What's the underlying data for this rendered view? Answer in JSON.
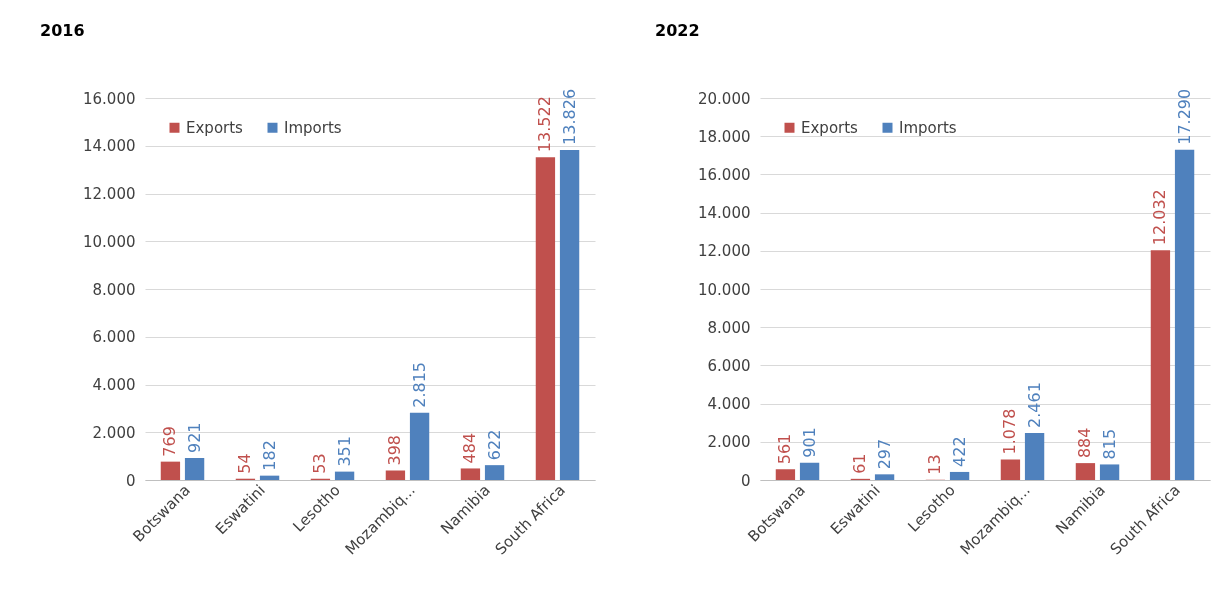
{
  "chart_data": [
    {
      "type": "bar",
      "title": "2016",
      "categories": [
        "Botswana",
        "Eswatini",
        "Lesotho",
        "Mozambiq...",
        "Namibia",
        "South Africa"
      ],
      "series": [
        {
          "name": "Exports",
          "color": "#c0504d",
          "values": [
            769,
            54,
            53,
            398,
            484,
            13522
          ],
          "value_labels": [
            "769",
            "54",
            "53",
            "398",
            "484",
            "13.522"
          ]
        },
        {
          "name": "Imports",
          "color": "#4f81bd",
          "values": [
            921,
            182,
            351,
            2815,
            622,
            13826
          ],
          "value_labels": [
            "921",
            "182",
            "351",
            "2.815",
            "622",
            "13.826"
          ]
        }
      ],
      "ylim": [
        0,
        16000
      ],
      "yticks": [
        {
          "value": 0,
          "label": "0"
        },
        {
          "value": 2000,
          "label": "2.000"
        },
        {
          "value": 4000,
          "label": "4.000"
        },
        {
          "value": 6000,
          "label": "6.000"
        },
        {
          "value": 8000,
          "label": "8.000"
        },
        {
          "value": 10000,
          "label": "10.000"
        },
        {
          "value": 12000,
          "label": "12.000"
        },
        {
          "value": 14000,
          "label": "14.000"
        },
        {
          "value": 16000,
          "label": "16.000"
        }
      ],
      "grid": "y",
      "legend": "top left"
    },
    {
      "type": "bar",
      "title": "2022",
      "categories": [
        "Botswana",
        "Eswatini",
        "Lesotho",
        "Mozambiq...",
        "Namibia",
        "South Africa"
      ],
      "series": [
        {
          "name": "Exports",
          "color": "#c0504d",
          "values": [
            561,
            61,
            13,
            1078,
            884,
            12032
          ],
          "value_labels": [
            "561",
            "61",
            "13",
            "1.078",
            "884",
            "12.032"
          ]
        },
        {
          "name": "Imports",
          "color": "#4f81bd",
          "values": [
            901,
            297,
            422,
            2461,
            815,
            17290
          ],
          "value_labels": [
            "901",
            "297",
            "422",
            "2.461",
            "815",
            "17.290"
          ]
        }
      ],
      "ylim": [
        0,
        20000
      ],
      "yticks": [
        {
          "value": 0,
          "label": "0"
        },
        {
          "value": 2000,
          "label": "2.000"
        },
        {
          "value": 4000,
          "label": "4.000"
        },
        {
          "value": 6000,
          "label": "6.000"
        },
        {
          "value": 8000,
          "label": "8.000"
        },
        {
          "value": 10000,
          "label": "10.000"
        },
        {
          "value": 12000,
          "label": "12.000"
        },
        {
          "value": 14000,
          "label": "14.000"
        },
        {
          "value": 16000,
          "label": "16.000"
        },
        {
          "value": 18000,
          "label": "18.000"
        },
        {
          "value": 20000,
          "label": "20.000"
        }
      ],
      "grid": "y",
      "legend": "top left"
    }
  ]
}
